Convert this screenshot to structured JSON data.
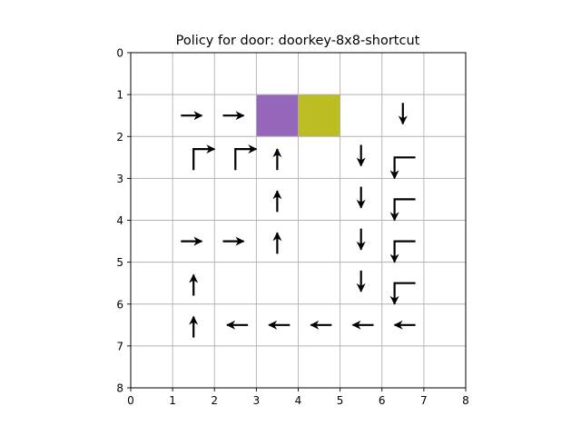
{
  "chart_data": {
    "type": "gridworld-policy",
    "title": "Policy for door: doorkey-8x8-shortcut",
    "xlabel": "",
    "ylabel": "",
    "xlim": [
      0,
      8
    ],
    "ylim": [
      8,
      0
    ],
    "y_axis_inverted": true,
    "x_ticks": [
      "0",
      "1",
      "2",
      "3",
      "4",
      "5",
      "6",
      "7",
      "8"
    ],
    "y_ticks": [
      "0",
      "1",
      "2",
      "3",
      "4",
      "5",
      "6",
      "7",
      "8"
    ],
    "grid": true,
    "colors": {
      "door_cell": "#9467bd",
      "key_cell": "#bcbd22",
      "grid": "#b0b0b0",
      "arrow": "#000000"
    },
    "filled_cells": [
      {
        "name": "door",
        "x": 3,
        "y": 1,
        "color": "#9467bd"
      },
      {
        "name": "key",
        "x": 4,
        "y": 1,
        "color": "#bcbd22"
      }
    ],
    "arrows": [
      {
        "x": 1.5,
        "y": 1.5,
        "dirs": [
          "right"
        ]
      },
      {
        "x": 2.5,
        "y": 1.5,
        "dirs": [
          "right"
        ]
      },
      {
        "x": 6.5,
        "y": 1.5,
        "dirs": [
          "down"
        ]
      },
      {
        "x": 1.5,
        "y": 2.5,
        "dirs": [
          "up",
          "right"
        ]
      },
      {
        "x": 2.5,
        "y": 2.5,
        "dirs": [
          "up",
          "right"
        ]
      },
      {
        "x": 3.5,
        "y": 2.5,
        "dirs": [
          "up"
        ]
      },
      {
        "x": 5.5,
        "y": 2.5,
        "dirs": [
          "down"
        ]
      },
      {
        "x": 6.5,
        "y": 2.5,
        "dirs": [
          "left",
          "down"
        ]
      },
      {
        "x": 3.5,
        "y": 3.5,
        "dirs": [
          "up"
        ]
      },
      {
        "x": 5.5,
        "y": 3.5,
        "dirs": [
          "down"
        ]
      },
      {
        "x": 6.5,
        "y": 3.5,
        "dirs": [
          "left",
          "down"
        ]
      },
      {
        "x": 1.5,
        "y": 4.5,
        "dirs": [
          "right"
        ]
      },
      {
        "x": 2.5,
        "y": 4.5,
        "dirs": [
          "right"
        ]
      },
      {
        "x": 3.5,
        "y": 4.5,
        "dirs": [
          "up"
        ]
      },
      {
        "x": 5.5,
        "y": 4.5,
        "dirs": [
          "down"
        ]
      },
      {
        "x": 6.5,
        "y": 4.5,
        "dirs": [
          "left",
          "down"
        ]
      },
      {
        "x": 1.5,
        "y": 5.5,
        "dirs": [
          "up"
        ]
      },
      {
        "x": 5.5,
        "y": 5.5,
        "dirs": [
          "down"
        ]
      },
      {
        "x": 6.5,
        "y": 5.5,
        "dirs": [
          "left",
          "down"
        ]
      },
      {
        "x": 1.5,
        "y": 6.5,
        "dirs": [
          "up"
        ]
      },
      {
        "x": 2.5,
        "y": 6.5,
        "dirs": [
          "left"
        ]
      },
      {
        "x": 3.5,
        "y": 6.5,
        "dirs": [
          "left"
        ]
      },
      {
        "x": 4.5,
        "y": 6.5,
        "dirs": [
          "left"
        ]
      },
      {
        "x": 5.5,
        "y": 6.5,
        "dirs": [
          "left"
        ]
      },
      {
        "x": 6.5,
        "y": 6.5,
        "dirs": [
          "left"
        ]
      }
    ]
  }
}
